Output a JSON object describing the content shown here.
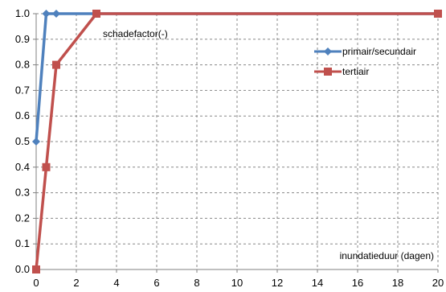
{
  "chart_data": {
    "type": "line",
    "xlabel": "inundatieduur (dagen)",
    "ylabel": "schadefactor(-)",
    "xlim": [
      0,
      20
    ],
    "ylim": [
      0,
      1
    ],
    "x_ticks": [
      "0",
      "2",
      "4",
      "6",
      "8",
      "10",
      "12",
      "14",
      "16",
      "18",
      "20"
    ],
    "y_ticks": [
      "0.0",
      "0.1",
      "0.2",
      "0.3",
      "0.4",
      "0.5",
      "0.6",
      "0.7",
      "0.8",
      "0.9",
      "1.0"
    ],
    "grid": true,
    "legend_position": "top-right",
    "series": [
      {
        "name": "primair/secundair",
        "color": "#4f81bd",
        "marker": "diamond",
        "x": [
          0,
          0.5,
          1,
          3,
          20
        ],
        "y": [
          0.5,
          1.0,
          1.0,
          1.0,
          1.0
        ]
      },
      {
        "name": "tertiair",
        "color": "#c0504d",
        "marker": "square",
        "x": [
          0,
          0.5,
          1,
          3,
          20
        ],
        "y": [
          0.0,
          0.4,
          0.8,
          1.0,
          1.0
        ]
      }
    ]
  }
}
